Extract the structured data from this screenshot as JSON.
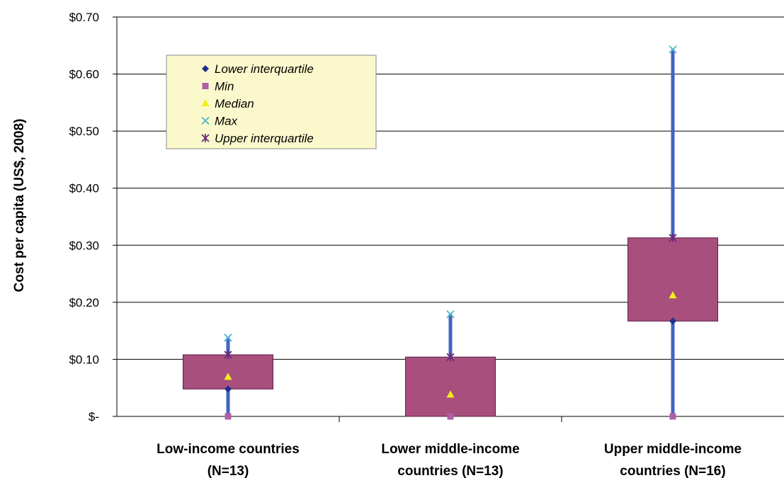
{
  "chart_data": {
    "type": "box",
    "ylabel": "Cost per capita (US$, 2008)",
    "ylim": [
      0,
      0.7
    ],
    "y_ticks": [
      {
        "value": 0.7,
        "label": "$0.70"
      },
      {
        "value": 0.6,
        "label": "$0.60"
      },
      {
        "value": 0.5,
        "label": "$0.50"
      },
      {
        "value": 0.4,
        "label": "$0.40"
      },
      {
        "value": 0.3,
        "label": "$0.30"
      },
      {
        "value": 0.2,
        "label": "$0.20"
      },
      {
        "value": 0.1,
        "label": "$0.10"
      },
      {
        "value": 0.0,
        "label": "$-"
      }
    ],
    "grid": true,
    "legend_position": "top-left",
    "categories": [
      {
        "lines": [
          "Low-income countries",
          "(N=13)"
        ]
      },
      {
        "lines": [
          "Lower middle-income",
          "countries (N=13)"
        ]
      },
      {
        "lines": [
          "Upper middle-income",
          "countries (N=16)"
        ]
      }
    ],
    "series": [
      {
        "name": "Lower interquartile",
        "marker": "diamond",
        "color": "#1f2f8f",
        "values": [
          0.048,
          0.0,
          0.167
        ]
      },
      {
        "name": "Min",
        "marker": "square",
        "color": "#b05fa6",
        "values": [
          0.0,
          0.0,
          0.0
        ]
      },
      {
        "name": "Median",
        "marker": "triangle",
        "color": "#f2ef1c",
        "values": [
          0.069,
          0.038,
          0.212
        ]
      },
      {
        "name": "Max",
        "marker": "x",
        "color": "#4fb6c6",
        "values": [
          0.138,
          0.179,
          0.643
        ]
      },
      {
        "name": "Upper interquartile",
        "marker": "star",
        "color": "#6b2a7a",
        "values": [
          0.108,
          0.104,
          0.313
        ]
      }
    ],
    "colors": {
      "box_fill": "#a84f7e",
      "box_stroke": "#5b1f4a",
      "whisker": "#3f64c4",
      "legend_bg": "#fbf9cc"
    }
  }
}
